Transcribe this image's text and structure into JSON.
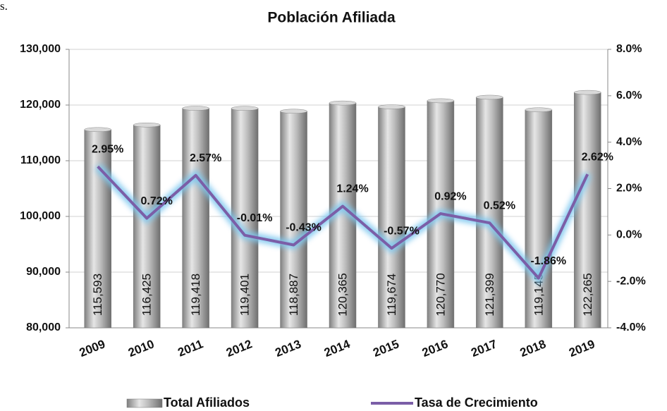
{
  "corner_text": "s.",
  "chart_data": {
    "type": "bar_line",
    "title": "Población Afiliada",
    "categories": [
      "2009",
      "2010",
      "2011",
      "2012",
      "2013",
      "2014",
      "2015",
      "2016",
      "2017",
      "2018",
      "2019"
    ],
    "series": [
      {
        "name": "Total Afiliados",
        "color": "#a6a6a6",
        "values": [
          115593,
          116425,
          119418,
          119401,
          118887,
          120365,
          119674,
          120770,
          121399,
          119145,
          122265
        ],
        "value_labels": [
          "115,593",
          "116,425",
          "119,418",
          "119,401",
          "118,887",
          "120,365",
          "119,674",
          "120,770",
          "121,399",
          "119,145",
          "122,265"
        ]
      },
      {
        "name": "Tasa de Crecimiento",
        "color": "#7b5ea7",
        "axis": "y2",
        "values": [
          2.95,
          0.72,
          2.57,
          -0.01,
          -0.43,
          1.24,
          -0.57,
          0.92,
          0.52,
          -1.86,
          2.62
        ],
        "value_labels": [
          "2.95%",
          "0.72%",
          "2.57%",
          "-0.01%",
          "-0.43%",
          "1.24%",
          "-0.57%",
          "0.92%",
          "0.52%",
          "-1.86%",
          "2.62%"
        ]
      }
    ],
    "ylim": [
      80000,
      130000
    ],
    "yticks": [
      {
        "value": 80000,
        "label": "80,000"
      },
      {
        "value": 90000,
        "label": "90,000"
      },
      {
        "value": 100000,
        "label": "100,000"
      },
      {
        "value": 110000,
        "label": "110,000"
      },
      {
        "value": 120000,
        "label": "120,000"
      },
      {
        "value": 130000,
        "label": "130,000"
      }
    ],
    "y2lim": [
      -4,
      8
    ],
    "y2ticks": [
      {
        "value": -4,
        "label": "-4.0%"
      },
      {
        "value": -2,
        "label": "-2.0%"
      },
      {
        "value": 0,
        "label": "0.0%"
      },
      {
        "value": 2,
        "label": "2.0%"
      },
      {
        "value": 4,
        "label": "4.0%"
      },
      {
        "value": 6,
        "label": "6.0%"
      },
      {
        "value": 8,
        "label": "8.0%"
      }
    ],
    "grid": true,
    "legend": "bottom"
  }
}
